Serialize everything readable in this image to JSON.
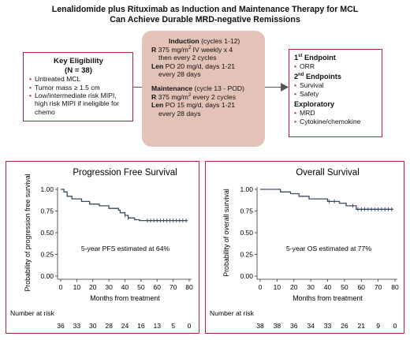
{
  "title_line1": "Lenalidomide plus Rituximab as Induction and Maintenance Therapy for MCL",
  "title_line2": "Can Achieve Durable MRD-negative Remissions",
  "eligibility": {
    "heading_line1": "Key Eligibility",
    "heading_line2": "(N = 38)",
    "items": [
      "Untreated MCL",
      "Tumor mass ≥ 1.5 cm",
      "Low/intermediate risk MIPI, high risk MIPI if ineligible for chemo"
    ]
  },
  "treatment": {
    "induction_label": "Induction",
    "induction_cycles": "(cycles 1-12)",
    "r_label": "R",
    "induction_r_text": "375 mg/m",
    "induction_r_text2": " IV weekly x 4",
    "induction_r_cont": "then every 2 cycles",
    "len_label": "Len",
    "induction_len_text": "PO 20 mg/d, days 1-21",
    "induction_len_cont": "every 28 days",
    "maintenance_label": "Maintenance",
    "maintenance_cycles": "(cycle 13 - POD)",
    "maint_r_text": "375 mg/m",
    "maint_r_text2": " every 2 cycles",
    "maint_len_text": "PO 15 mg/d, days 1-21",
    "maint_len_cont": "every 28 days",
    "sup2": "2"
  },
  "endpoints": {
    "first_num": "1",
    "first_sup": "st",
    "first_label": " Endpoint",
    "first_items": [
      "ORR"
    ],
    "second_num": "2",
    "second_sup": "nd",
    "second_label": " Endpoints",
    "second_items": [
      "Survival",
      "Safety"
    ],
    "exploratory_label": "Exploratory",
    "exploratory_items": [
      "MRD",
      "Cytokine/chemokine"
    ]
  },
  "colors": {
    "accent": "#b0253c",
    "curve": "#3b4a66",
    "treatment_fill": "#e3c2b8"
  },
  "chart_data": [
    {
      "type": "line",
      "title": "Progression Free Survival",
      "xlabel": "Months from treatment",
      "ylabel": "Probability of progression free survival",
      "xlim": [
        0,
        80
      ],
      "ylim": [
        0,
        1
      ],
      "x_ticks": [
        "0",
        "10",
        "20",
        "30",
        "40",
        "50",
        "60",
        "70",
        "80"
      ],
      "y_ticks": [
        "0.00",
        "0.25",
        "0.50",
        "0.75",
        "1.00"
      ],
      "annotation": "5-year PFS estimated at 64%",
      "series": [
        {
          "x": [
            0,
            2,
            4,
            7,
            13,
            18,
            24,
            30,
            36,
            37,
            40,
            42,
            46,
            49,
            51,
            79
          ],
          "y": [
            1.0,
            0.97,
            0.92,
            0.89,
            0.86,
            0.83,
            0.81,
            0.78,
            0.76,
            0.73,
            0.7,
            0.67,
            0.65,
            0.64,
            0.64,
            0.64
          ]
        }
      ],
      "censor_x": [
        40,
        42,
        54,
        56,
        58,
        60,
        62,
        64,
        66,
        68,
        70,
        72,
        74,
        76,
        78
      ],
      "risk_label": "Number at risk",
      "at_risk": [
        "36",
        "33",
        "30",
        "28",
        "24",
        "16",
        "13",
        "5",
        "0"
      ]
    },
    {
      "type": "line",
      "title": "Overall Survival",
      "xlabel": "Months from treatment",
      "ylabel": "Probability of overall survival",
      "xlim": [
        0,
        80
      ],
      "ylim": [
        0,
        1
      ],
      "x_ticks": [
        "0",
        "10",
        "20",
        "30",
        "40",
        "50",
        "60",
        "70",
        "80"
      ],
      "y_ticks": [
        "0.00",
        "0.25",
        "0.50",
        "0.75",
        "1.00"
      ],
      "annotation": "5-year OS estimated at 77%",
      "series": [
        {
          "x": [
            0,
            12,
            18,
            23,
            29,
            40,
            47,
            51,
            57,
            79
          ],
          "y": [
            1.0,
            0.97,
            0.95,
            0.92,
            0.89,
            0.86,
            0.84,
            0.81,
            0.77,
            0.77
          ]
        }
      ],
      "censor_x": [
        41,
        44,
        55,
        58,
        60,
        62,
        64,
        66,
        68,
        70,
        72,
        74,
        76,
        78
      ],
      "risk_label": "Number at risk",
      "at_risk": [
        "38",
        "38",
        "36",
        "34",
        "33",
        "26",
        "21",
        "9",
        "0"
      ]
    }
  ]
}
